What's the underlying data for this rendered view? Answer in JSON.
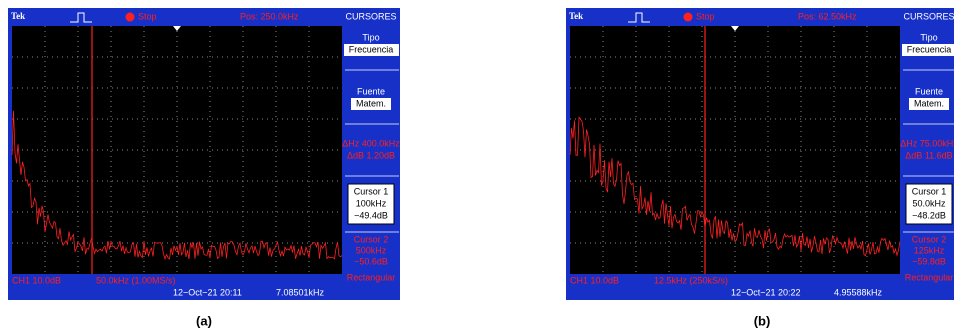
{
  "panels": [
    {
      "caption": "(a)",
      "header": {
        "brand": "Tek",
        "status": "Stop",
        "position": "Pos: 250.0kHz",
        "menu_title": "CURSORES"
      },
      "menu": {
        "type_label": "Tipo",
        "type_value": "Frecuencia",
        "source_label": "Fuente",
        "source_value": "Matem.",
        "delta_hz": "ΔHz 400.0kHz",
        "delta_db": "ΔdB 1.20dB",
        "cursor1": [
          "Cursor 1",
          "100kHz",
          "−49.4dB"
        ],
        "cursor2": [
          "Cursor 2",
          "500kHz",
          "−50.6dB"
        ],
        "window": "Rectangular"
      },
      "footer": {
        "channel": "CH1 10.0dB",
        "scale": "50.0kHz (1.00MS/s)",
        "date": "12−Oct−21 20:11",
        "frequency": "7.08501kHz"
      }
    },
    {
      "caption": "(b)",
      "header": {
        "brand": "Tek",
        "status": "Stop",
        "position": "Pos: 62.50kHz",
        "menu_title": "CURSORES"
      },
      "menu": {
        "type_label": "Tipo",
        "type_value": "Frecuencia",
        "source_label": "Fuente",
        "source_value": "Matem.",
        "delta_hz": "ΔHz 75.00kHz",
        "delta_db": "ΔdB 11.6dB",
        "cursor1": [
          "Cursor 1",
          "50.0kHz",
          "−48.2dB"
        ],
        "cursor2": [
          "Cursor 2",
          "125kHz",
          "−59.8dB"
        ],
        "window": "Rectangular"
      },
      "footer": {
        "channel": "CH1 10.0dB",
        "scale": "12.5kHz (250kS/s)",
        "date": "12−Oct−21 20:22",
        "frequency": "4.95588kHz"
      }
    }
  ]
}
